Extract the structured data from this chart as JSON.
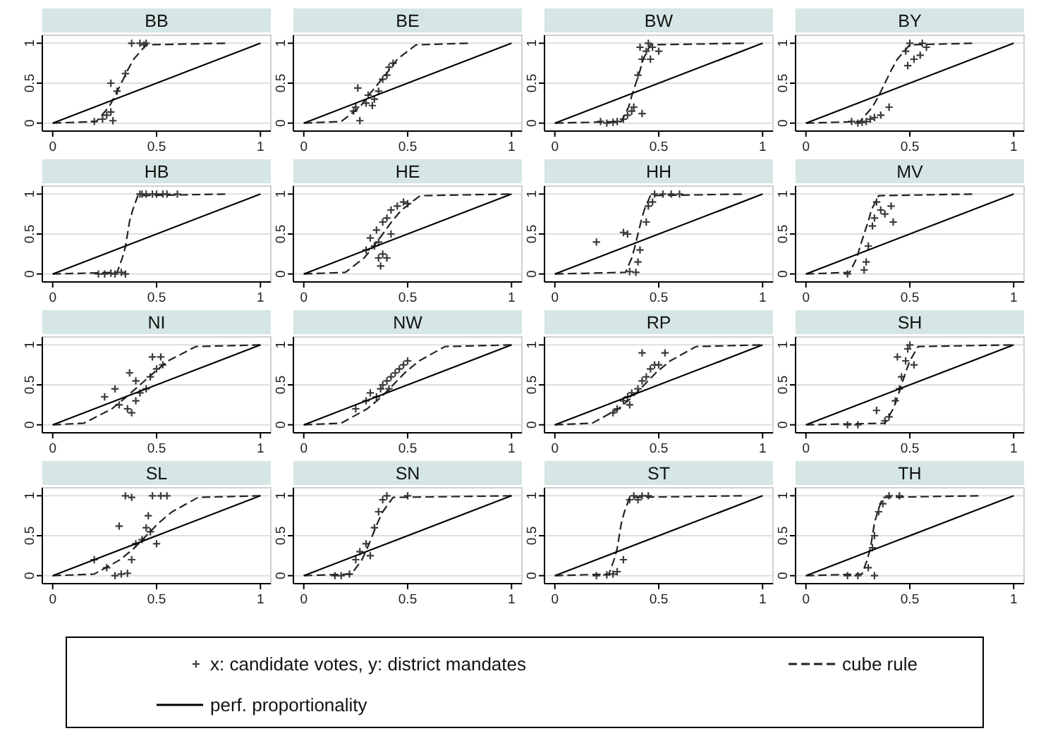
{
  "chart_data": [
    {
      "type": "scatter",
      "title": "BB",
      "xlim": [
        -0.05,
        1.05
      ],
      "ylim": [
        -0.1,
        1.1
      ],
      "xticks": [
        0,
        0.5,
        1
      ],
      "yticks": [
        0,
        0.5,
        1
      ],
      "grid": "y",
      "series": [
        {
          "color": "#3a3a3a",
          "marker": "cross",
          "x": [
            0.2,
            0.24,
            0.26,
            0.28,
            0.29,
            0.28,
            0.31,
            0.35,
            0.38,
            0.45,
            0.44,
            0.42
          ],
          "values": [
            0.02,
            0.05,
            0.1,
            0.14,
            0.03,
            0.5,
            0.4,
            0.62,
            1,
            1,
            0.98,
            1
          ]
        },
        {
          "type": "line",
          "line_style": "dashed",
          "color": "#222222",
          "marker": "none",
          "x": [
            0,
            0.21,
            0.27,
            0.3,
            0.33,
            0.36,
            0.39,
            0.45,
            0.83
          ],
          "values": [
            0,
            0.02,
            0.2,
            0.34,
            0.5,
            0.66,
            0.8,
            0.98,
            1
          ]
        },
        {
          "type": "line",
          "line_style": "solid",
          "color": "#000000",
          "marker": "none",
          "x": [
            0,
            1
          ],
          "values": [
            0,
            1
          ]
        }
      ]
    },
    {
      "type": "scatter",
      "title": "BE",
      "xlim": [
        -0.05,
        1.05
      ],
      "ylim": [
        -0.1,
        1.1
      ],
      "xticks": [
        0,
        0.5,
        1
      ],
      "yticks": [
        0,
        0.5,
        1
      ],
      "grid": "y",
      "series": [
        {
          "color": "#3a3a3a",
          "marker": "cross",
          "x": [
            0.24,
            0.25,
            0.26,
            0.27,
            0.3,
            0.31,
            0.34,
            0.36,
            0.38,
            0.4,
            0.41,
            0.43,
            0.33
          ],
          "values": [
            0.15,
            0.2,
            0.44,
            0.03,
            0.25,
            0.35,
            0.3,
            0.4,
            0.55,
            0.6,
            0.7,
            0.75,
            0.22
          ]
        },
        {
          "type": "line",
          "line_style": "dashed",
          "color": "#222222",
          "marker": "none",
          "x": [
            0,
            0.18,
            0.27,
            0.31,
            0.36,
            0.41,
            0.45,
            0.54,
            0.79
          ],
          "values": [
            0,
            0.02,
            0.2,
            0.34,
            0.5,
            0.66,
            0.8,
            0.98,
            1
          ]
        },
        {
          "type": "line",
          "line_style": "solid",
          "color": "#000000",
          "marker": "none",
          "x": [
            0,
            1
          ],
          "values": [
            0,
            1
          ]
        }
      ]
    },
    {
      "type": "scatter",
      "title": "BW",
      "xlim": [
        -0.05,
        1.05
      ],
      "ylim": [
        -0.1,
        1.1
      ],
      "xticks": [
        0,
        0.5,
        1
      ],
      "yticks": [
        0,
        0.5,
        1
      ],
      "grid": "y",
      "series": [
        {
          "color": "#3a3a3a",
          "marker": "cross",
          "x": [
            0.22,
            0.25,
            0.28,
            0.3,
            0.33,
            0.35,
            0.37,
            0.38,
            0.42,
            0.4,
            0.42,
            0.44,
            0.45,
            0.47,
            0.46,
            0.41,
            0.5
          ],
          "values": [
            0.02,
            0,
            0.01,
            0.02,
            0.05,
            0.1,
            0.15,
            0.2,
            0.12,
            0.6,
            0.8,
            0.9,
            1,
            0.95,
            0.8,
            0.95,
            0.9
          ]
        },
        {
          "type": "line",
          "line_style": "dashed",
          "color": "#222222",
          "marker": "none",
          "x": [
            0,
            0.32,
            0.355,
            0.37,
            0.39,
            0.41,
            0.425,
            0.46,
            0.91
          ],
          "values": [
            0,
            0.02,
            0.2,
            0.34,
            0.5,
            0.66,
            0.8,
            0.98,
            1
          ]
        },
        {
          "type": "line",
          "line_style": "solid",
          "color": "#000000",
          "marker": "none",
          "x": [
            0,
            1
          ],
          "values": [
            0,
            1
          ]
        }
      ]
    },
    {
      "type": "scatter",
      "title": "BY",
      "xlim": [
        -0.05,
        1.05
      ],
      "ylim": [
        -0.1,
        1.1
      ],
      "xticks": [
        0,
        0.5,
        1
      ],
      "yticks": [
        0,
        0.5,
        1
      ],
      "grid": "y",
      "series": [
        {
          "color": "#3a3a3a",
          "marker": "cross",
          "x": [
            0.22,
            0.25,
            0.27,
            0.29,
            0.31,
            0.33,
            0.36,
            0.4,
            0.48,
            0.5,
            0.52,
            0.55,
            0.56,
            0.58,
            0.49
          ],
          "values": [
            0.02,
            0,
            0.01,
            0.02,
            0.05,
            0.07,
            0.1,
            0.2,
            0.9,
            1,
            0.8,
            0.85,
            1,
            0.95,
            0.72
          ]
        },
        {
          "type": "line",
          "line_style": "dashed",
          "color": "#222222",
          "marker": "none",
          "x": [
            0,
            0.26,
            0.32,
            0.35,
            0.38,
            0.41,
            0.44,
            0.5,
            0.8
          ],
          "values": [
            0,
            0.02,
            0.2,
            0.34,
            0.5,
            0.66,
            0.8,
            0.98,
            1
          ]
        },
        {
          "type": "line",
          "line_style": "solid",
          "color": "#000000",
          "marker": "none",
          "x": [
            0,
            1
          ],
          "values": [
            0,
            1
          ]
        }
      ]
    },
    {
      "type": "scatter",
      "title": "HB",
      "xlim": [
        -0.05,
        1.05
      ],
      "ylim": [
        -0.1,
        1.1
      ],
      "xticks": [
        0,
        0.5,
        1
      ],
      "yticks": [
        0,
        0.5,
        1
      ],
      "grid": "y",
      "series": [
        {
          "color": "#3a3a3a",
          "marker": "cross",
          "x": [
            0.22,
            0.25,
            0.28,
            0.3,
            0.33,
            0.35,
            0.43,
            0.45,
            0.48,
            0.5,
            0.53,
            0.55,
            0.6,
            0.42
          ],
          "values": [
            0,
            0,
            0.01,
            0,
            0.02,
            0,
            1,
            1,
            1,
            1,
            1,
            1,
            1,
            1
          ]
        },
        {
          "type": "line",
          "line_style": "dashed",
          "color": "#222222",
          "marker": "none",
          "x": [
            0,
            0.31,
            0.335,
            0.35,
            0.36,
            0.37,
            0.385,
            0.41,
            0.83
          ],
          "values": [
            0,
            0.02,
            0.2,
            0.34,
            0.5,
            0.66,
            0.8,
            0.98,
            1
          ]
        },
        {
          "type": "line",
          "line_style": "solid",
          "color": "#000000",
          "marker": "none",
          "x": [
            0,
            1
          ],
          "values": [
            0,
            1
          ]
        }
      ]
    },
    {
      "type": "scatter",
      "title": "HE",
      "xlim": [
        -0.05,
        1.05
      ],
      "ylim": [
        -0.1,
        1.1
      ],
      "xticks": [
        0,
        0.5,
        1
      ],
      "yticks": [
        0,
        0.5,
        1
      ],
      "grid": "y",
      "series": [
        {
          "color": "#3a3a3a",
          "marker": "cross",
          "x": [
            0.3,
            0.32,
            0.34,
            0.36,
            0.38,
            0.37,
            0.4,
            0.35,
            0.38,
            0.4,
            0.42,
            0.45,
            0.48,
            0.5,
            0.36,
            0.42
          ],
          "values": [
            0.3,
            0.45,
            0.35,
            0.4,
            0.25,
            0.1,
            0.2,
            0.55,
            0.65,
            0.7,
            0.8,
            0.85,
            0.9,
            0.88,
            0.2,
            0.5
          ]
        },
        {
          "type": "line",
          "line_style": "dashed",
          "color": "#222222",
          "marker": "none",
          "x": [
            0,
            0.2,
            0.29,
            0.335,
            0.38,
            0.425,
            0.47,
            0.56,
            0.99
          ],
          "values": [
            0,
            0.02,
            0.2,
            0.34,
            0.5,
            0.66,
            0.8,
            0.98,
            1
          ]
        },
        {
          "type": "line",
          "line_style": "solid",
          "color": "#000000",
          "marker": "none",
          "x": [
            0,
            1
          ],
          "values": [
            0,
            1
          ]
        }
      ]
    },
    {
      "type": "scatter",
      "title": "HH",
      "xlim": [
        -0.05,
        1.05
      ],
      "ylim": [
        -0.1,
        1.1
      ],
      "xticks": [
        0,
        0.5,
        1
      ],
      "yticks": [
        0,
        0.5,
        1
      ],
      "grid": "y",
      "series": [
        {
          "color": "#3a3a3a",
          "marker": "cross",
          "x": [
            0.2,
            0.33,
            0.35,
            0.36,
            0.39,
            0.4,
            0.41,
            0.44,
            0.45,
            0.47,
            0.48,
            0.52,
            0.56,
            0.6
          ],
          "values": [
            0.4,
            0.52,
            0.5,
            0.03,
            0.02,
            0.15,
            0.3,
            0.65,
            0.85,
            0.9,
            1,
            1,
            1,
            1
          ]
        },
        {
          "type": "line",
          "line_style": "dashed",
          "color": "#222222",
          "marker": "none",
          "x": [
            0,
            0.34,
            0.37,
            0.385,
            0.4,
            0.415,
            0.43,
            0.46,
            0.9
          ],
          "values": [
            0,
            0.02,
            0.2,
            0.34,
            0.5,
            0.66,
            0.8,
            0.98,
            1
          ]
        },
        {
          "type": "line",
          "line_style": "solid",
          "color": "#000000",
          "marker": "none",
          "x": [
            0,
            1
          ],
          "values": [
            0,
            1
          ]
        }
      ]
    },
    {
      "type": "scatter",
      "title": "MV",
      "xlim": [
        -0.05,
        1.05
      ],
      "ylim": [
        -0.1,
        1.1
      ],
      "xticks": [
        0,
        0.5,
        1
      ],
      "yticks": [
        0,
        0.5,
        1
      ],
      "grid": "y",
      "series": [
        {
          "color": "#3a3a3a",
          "marker": "cross",
          "x": [
            0.2,
            0.28,
            0.29,
            0.3,
            0.32,
            0.33,
            0.34,
            0.38,
            0.41,
            0.42,
            0.36
          ],
          "values": [
            0,
            0.05,
            0.15,
            0.35,
            0.6,
            0.7,
            0.9,
            0.75,
            0.85,
            0.65,
            0.8
          ]
        },
        {
          "type": "line",
          "line_style": "dashed",
          "color": "#222222",
          "marker": "none",
          "x": [
            0,
            0.21,
            0.245,
            0.26,
            0.28,
            0.3,
            0.315,
            0.35,
            0.8
          ],
          "values": [
            0,
            0.02,
            0.2,
            0.34,
            0.5,
            0.66,
            0.8,
            0.98,
            1
          ]
        },
        {
          "type": "line",
          "line_style": "solid",
          "color": "#000000",
          "marker": "none",
          "x": [
            0,
            1
          ],
          "values": [
            0,
            1
          ]
        }
      ]
    },
    {
      "type": "scatter",
      "title": "NI",
      "xlim": [
        -0.05,
        1.05
      ],
      "ylim": [
        -0.1,
        1.1
      ],
      "xticks": [
        0,
        0.5,
        1
      ],
      "yticks": [
        0,
        0.5,
        1
      ],
      "grid": "y",
      "series": [
        {
          "color": "#3a3a3a",
          "marker": "cross",
          "x": [
            0.25,
            0.3,
            0.32,
            0.36,
            0.38,
            0.4,
            0.37,
            0.42,
            0.45,
            0.47,
            0.5,
            0.52,
            0.53,
            0.48,
            0.4
          ],
          "values": [
            0.35,
            0.45,
            0.25,
            0.2,
            0.15,
            0.3,
            0.65,
            0.4,
            0.45,
            0.6,
            0.7,
            0.85,
            0.75,
            0.85,
            0.55
          ]
        },
        {
          "type": "line",
          "line_style": "dashed",
          "color": "#222222",
          "marker": "none",
          "x": [
            0,
            0.15,
            0.285,
            0.35,
            0.42,
            0.49,
            0.555,
            0.69,
            1
          ],
          "values": [
            0,
            0.02,
            0.2,
            0.34,
            0.5,
            0.66,
            0.8,
            0.98,
            1
          ]
        },
        {
          "type": "line",
          "line_style": "solid",
          "color": "#000000",
          "marker": "none",
          "x": [
            0,
            1
          ],
          "values": [
            0,
            1
          ]
        }
      ]
    },
    {
      "type": "scatter",
      "title": "NW",
      "xlim": [
        -0.05,
        1.05
      ],
      "ylim": [
        -0.1,
        1.1
      ],
      "xticks": [
        0,
        0.5,
        1
      ],
      "yticks": [
        0,
        0.5,
        1
      ],
      "grid": "y",
      "series": [
        {
          "color": "#3a3a3a",
          "marker": "cross",
          "x": [
            0.25,
            0.3,
            0.32,
            0.35,
            0.37,
            0.38,
            0.4,
            0.42,
            0.44,
            0.46,
            0.48,
            0.5,
            0.41
          ],
          "values": [
            0.2,
            0.3,
            0.4,
            0.35,
            0.45,
            0.5,
            0.55,
            0.6,
            0.65,
            0.7,
            0.75,
            0.8,
            0.45
          ]
        },
        {
          "type": "line",
          "line_style": "dashed",
          "color": "#222222",
          "marker": "none",
          "x": [
            0,
            0.18,
            0.305,
            0.37,
            0.43,
            0.49,
            0.555,
            0.68,
            1
          ],
          "values": [
            0,
            0.02,
            0.2,
            0.34,
            0.5,
            0.66,
            0.8,
            0.98,
            1
          ]
        },
        {
          "type": "line",
          "line_style": "solid",
          "color": "#000000",
          "marker": "none",
          "x": [
            0,
            1
          ],
          "values": [
            0,
            1
          ]
        }
      ]
    },
    {
      "type": "scatter",
      "title": "RP",
      "xlim": [
        -0.05,
        1.05
      ],
      "ylim": [
        -0.1,
        1.1
      ],
      "xticks": [
        0,
        0.5,
        1
      ],
      "yticks": [
        0,
        0.5,
        1
      ],
      "grid": "y",
      "series": [
        {
          "color": "#3a3a3a",
          "marker": "cross",
          "x": [
            0.28,
            0.3,
            0.33,
            0.35,
            0.37,
            0.4,
            0.42,
            0.44,
            0.46,
            0.48,
            0.5,
            0.42,
            0.53,
            0.36
          ],
          "values": [
            0.15,
            0.2,
            0.3,
            0.35,
            0.4,
            0.45,
            0.55,
            0.6,
            0.7,
            0.75,
            0.75,
            0.9,
            0.9,
            0.25
          ]
        },
        {
          "type": "line",
          "line_style": "dashed",
          "color": "#222222",
          "marker": "none",
          "x": [
            0,
            0.18,
            0.305,
            0.37,
            0.43,
            0.49,
            0.555,
            0.68,
            0.99
          ],
          "values": [
            0,
            0.02,
            0.2,
            0.34,
            0.5,
            0.66,
            0.8,
            0.98,
            1
          ]
        },
        {
          "type": "line",
          "line_style": "solid",
          "color": "#000000",
          "marker": "none",
          "x": [
            0,
            1
          ],
          "values": [
            0,
            1
          ]
        }
      ]
    },
    {
      "type": "scatter",
      "title": "SH",
      "xlim": [
        -0.05,
        1.05
      ],
      "ylim": [
        -0.1,
        1.1
      ],
      "xticks": [
        0,
        0.5,
        1
      ],
      "yticks": [
        0,
        0.5,
        1
      ],
      "grid": "y",
      "series": [
        {
          "color": "#3a3a3a",
          "marker": "cross",
          "x": [
            0.2,
            0.25,
            0.34,
            0.38,
            0.4,
            0.43,
            0.45,
            0.46,
            0.48,
            0.49,
            0.5,
            0.52,
            0.44
          ],
          "values": [
            0,
            0,
            0.18,
            0.05,
            0.1,
            0.3,
            0.45,
            0.6,
            0.8,
            0.95,
            1,
            0.75,
            0.85
          ]
        },
        {
          "type": "line",
          "line_style": "dashed",
          "color": "#222222",
          "marker": "none",
          "x": [
            0,
            0.38,
            0.42,
            0.44,
            0.46,
            0.48,
            0.5,
            0.54,
            0.99
          ],
          "values": [
            0,
            0.02,
            0.2,
            0.34,
            0.5,
            0.66,
            0.8,
            0.98,
            1
          ]
        },
        {
          "type": "line",
          "line_style": "solid",
          "color": "#000000",
          "marker": "none",
          "x": [
            0,
            1
          ],
          "values": [
            0,
            1
          ]
        }
      ]
    },
    {
      "type": "scatter",
      "title": "SL",
      "xlim": [
        -0.05,
        1.05
      ],
      "ylim": [
        -0.1,
        1.1
      ],
      "xticks": [
        0,
        0.5,
        1
      ],
      "yticks": [
        0,
        0.5,
        1
      ],
      "grid": "y",
      "series": [
        {
          "color": "#3a3a3a",
          "marker": "cross",
          "x": [
            0.2,
            0.26,
            0.3,
            0.33,
            0.36,
            0.32,
            0.35,
            0.38,
            0.4,
            0.43,
            0.45,
            0.47,
            0.5,
            0.48,
            0.52,
            0.55,
            0.46,
            0.38
          ],
          "values": [
            0.2,
            0.1,
            0,
            0.02,
            0.03,
            0.62,
            1,
            0.98,
            0.4,
            0.45,
            0.6,
            0.55,
            0.4,
            1,
            1,
            1,
            0.75,
            0.2
          ]
        },
        {
          "type": "line",
          "line_style": "dashed",
          "color": "#222222",
          "marker": "none",
          "x": [
            0,
            0.2,
            0.325,
            0.39,
            0.45,
            0.51,
            0.575,
            0.7,
            1
          ],
          "values": [
            0,
            0.02,
            0.2,
            0.34,
            0.5,
            0.66,
            0.8,
            0.98,
            1
          ]
        },
        {
          "type": "line",
          "line_style": "solid",
          "color": "#000000",
          "marker": "none",
          "x": [
            0,
            1
          ],
          "values": [
            0,
            1
          ]
        }
      ]
    },
    {
      "type": "scatter",
      "title": "SN",
      "xlim": [
        -0.05,
        1.05
      ],
      "ylim": [
        -0.1,
        1.1
      ],
      "xticks": [
        0,
        0.5,
        1
      ],
      "yticks": [
        0,
        0.5,
        1
      ],
      "grid": "y",
      "series": [
        {
          "color": "#3a3a3a",
          "marker": "cross",
          "x": [
            0.15,
            0.18,
            0.22,
            0.25,
            0.27,
            0.3,
            0.32,
            0.34,
            0.36,
            0.38,
            0.4,
            0.5
          ],
          "values": [
            0,
            0,
            0.02,
            0.2,
            0.3,
            0.4,
            0.25,
            0.6,
            0.8,
            0.95,
            1,
            1
          ]
        },
        {
          "type": "line",
          "line_style": "dashed",
          "color": "#222222",
          "marker": "none",
          "x": [
            0,
            0.23,
            0.28,
            0.305,
            0.33,
            0.355,
            0.38,
            0.43,
            1
          ],
          "values": [
            0,
            0.02,
            0.2,
            0.34,
            0.5,
            0.66,
            0.8,
            0.98,
            1
          ]
        },
        {
          "type": "line",
          "line_style": "solid",
          "color": "#000000",
          "marker": "none",
          "x": [
            0,
            1
          ],
          "values": [
            0,
            1
          ]
        }
      ]
    },
    {
      "type": "scatter",
      "title": "ST",
      "xlim": [
        -0.05,
        1.05
      ],
      "ylim": [
        -0.1,
        1.1
      ],
      "xticks": [
        0,
        0.5,
        1
      ],
      "yticks": [
        0,
        0.5,
        1
      ],
      "grid": "y",
      "series": [
        {
          "color": "#3a3a3a",
          "marker": "cross",
          "x": [
            0.2,
            0.25,
            0.28,
            0.3,
            0.33,
            0.36,
            0.38,
            0.4,
            0.45,
            0.42
          ],
          "values": [
            0,
            0.01,
            0.02,
            0.05,
            0.2,
            0.95,
            1,
            0.95,
            1,
            1
          ]
        },
        {
          "type": "line",
          "line_style": "dashed",
          "color": "#222222",
          "marker": "none",
          "x": [
            0,
            0.26,
            0.285,
            0.3,
            0.31,
            0.32,
            0.335,
            0.36,
            0.9
          ],
          "values": [
            0,
            0.02,
            0.2,
            0.34,
            0.5,
            0.66,
            0.8,
            0.98,
            1
          ]
        },
        {
          "type": "line",
          "line_style": "solid",
          "color": "#000000",
          "marker": "none",
          "x": [
            0,
            1
          ],
          "values": [
            0,
            1
          ]
        }
      ]
    },
    {
      "type": "scatter",
      "title": "TH",
      "xlim": [
        -0.05,
        1.05
      ],
      "ylim": [
        -0.1,
        1.1
      ],
      "xticks": [
        0,
        0.5,
        1
      ],
      "yticks": [
        0,
        0.5,
        1
      ],
      "grid": "y",
      "legend": "bottom",
      "series": [
        {
          "name": "x: candidate votes, y: district mandates",
          "color": "#3a3a3a",
          "marker": "cross",
          "x": [
            0.2,
            0.25,
            0.3,
            0.32,
            0.33,
            0.35,
            0.37,
            0.4,
            0.45,
            0.33
          ],
          "values": [
            0,
            0,
            0.1,
            0.35,
            0.5,
            0.8,
            0.9,
            1,
            1,
            0
          ]
        },
        {
          "name": "cube rule",
          "type": "line",
          "line_style": "dashed",
          "color": "#222222",
          "marker": "none",
          "x": [
            0,
            0.27,
            0.295,
            0.31,
            0.32,
            0.33,
            0.345,
            0.37,
            0.83
          ],
          "values": [
            0,
            0.02,
            0.2,
            0.34,
            0.5,
            0.66,
            0.8,
            0.98,
            1
          ]
        },
        {
          "name": "perf. proportionality",
          "type": "line",
          "line_style": "solid",
          "color": "#000000",
          "marker": "none",
          "x": [
            0,
            1
          ],
          "values": [
            0,
            1
          ]
        }
      ]
    }
  ]
}
